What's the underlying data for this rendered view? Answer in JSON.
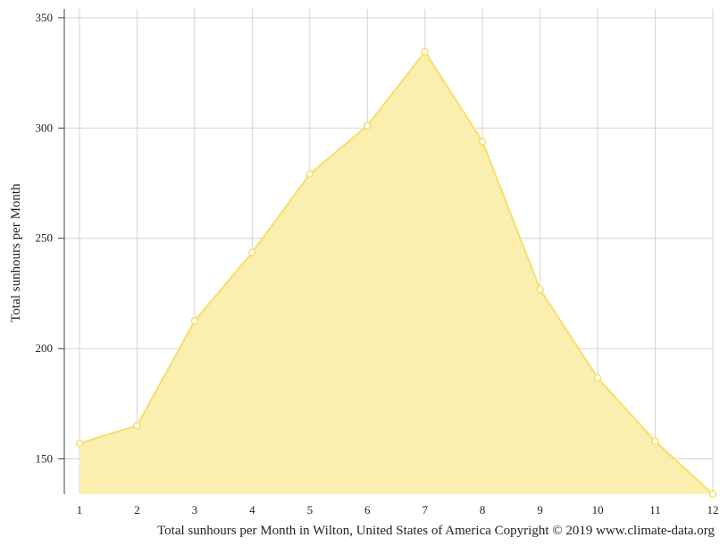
{
  "chart_data": {
    "type": "area",
    "ylabel": "Total sunhours per Month",
    "caption": "Total sunhours per Month in Wilton, United States of America Copyright © 2019 www.climate-data.org",
    "x": [
      1,
      2,
      3,
      4,
      5,
      6,
      7,
      8,
      9,
      10,
      11,
      12
    ],
    "x_tick_labels": [
      "1",
      "2",
      "3",
      "4",
      "5",
      "6",
      "7",
      "8",
      "9",
      "10",
      "11",
      "12"
    ],
    "y_tick_labels": [
      "150",
      "200",
      "250",
      "300",
      "350"
    ],
    "y_ticks": [
      150,
      200,
      250,
      300,
      350
    ],
    "ylim": [
      134,
      354
    ],
    "grid": true,
    "series": [
      {
        "values": [
          157.1,
          165.1,
          212.6,
          243.6,
          279.1,
          301.1,
          334.6,
          293.9,
          226.8,
          186.7,
          158.0,
          134.0
        ],
        "color": "#f5df6b",
        "fill": "#faeeab"
      }
    ]
  }
}
